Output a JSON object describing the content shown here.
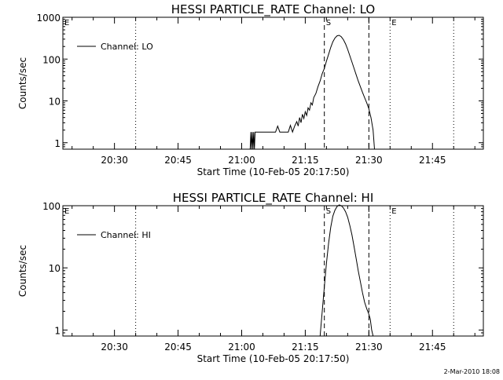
{
  "footer_text": "2-Mar-2010 18:08",
  "chart_data": [
    {
      "type": "line",
      "title": "HESSI PARTICLE_RATE Channel: LO",
      "xlabel": "Start Time (10-Feb-05 20:17:50)",
      "ylabel": "Counts/sec",
      "yscale": "log",
      "xlim": [
        "20:17:50",
        "21:57:00"
      ],
      "ylim": [
        0.7,
        1000
      ],
      "x_tick_labels": [
        "20:30",
        "20:45",
        "21:00",
        "21:15",
        "21:30",
        "21:45"
      ],
      "y_tick_labels": [
        "1",
        "10",
        "100",
        "1000"
      ],
      "legend": {
        "position": "top-left",
        "entries": [
          "Channel: LO"
        ]
      },
      "markers": [
        {
          "label": "E",
          "x": "20:17:50",
          "style": "dotted"
        },
        {
          "label": "",
          "x": "20:35:00",
          "style": "dotted"
        },
        {
          "label": "S",
          "x": "21:19:30",
          "style": "dashed"
        },
        {
          "label": "",
          "x": "21:30:00",
          "style": "dashed"
        },
        {
          "label": "E",
          "x": "21:35:00",
          "style": "dotted"
        },
        {
          "label": "",
          "x": "21:50:00",
          "style": "dotted"
        }
      ],
      "series": [
        {
          "name": "Channel: LO",
          "points": [
            [
              "21:02:00",
              0.7
            ],
            [
              "21:02:10",
              1.8
            ],
            [
              "21:02:20",
              0.7
            ],
            [
              "21:02:30",
              1.8
            ],
            [
              "21:02:40",
              0.7
            ],
            [
              "21:02:50",
              1.8
            ],
            [
              "21:03:00",
              0.7
            ],
            [
              "21:03:10",
              1.8
            ],
            [
              "21:04:00",
              1.8
            ],
            [
              "21:05:00",
              1.8
            ],
            [
              "21:06:00",
              1.8
            ],
            [
              "21:07:00",
              1.8
            ],
            [
              "21:08:00",
              1.8
            ],
            [
              "21:08:30",
              2.5
            ],
            [
              "21:09:00",
              1.8
            ],
            [
              "21:10:00",
              1.8
            ],
            [
              "21:11:00",
              1.8
            ],
            [
              "21:11:30",
              2.6
            ],
            [
              "21:12:00",
              1.8
            ],
            [
              "21:12:30",
              2.5
            ],
            [
              "21:13:00",
              3.2
            ],
            [
              "21:13:20",
              2.5
            ],
            [
              "21:13:40",
              4.0
            ],
            [
              "21:14:00",
              3.0
            ],
            [
              "21:14:20",
              4.8
            ],
            [
              "21:14:40",
              3.8
            ],
            [
              "21:15:00",
              5.5
            ],
            [
              "21:15:20",
              4.5
            ],
            [
              "21:15:40",
              6.8
            ],
            [
              "21:16:00",
              6.0
            ],
            [
              "21:16:20",
              9.0
            ],
            [
              "21:16:40",
              8.0
            ],
            [
              "21:17:00",
              12
            ],
            [
              "21:17:30",
              15
            ],
            [
              "21:18:00",
              22
            ],
            [
              "21:18:30",
              30
            ],
            [
              "21:19:00",
              45
            ],
            [
              "21:19:30",
              60
            ],
            [
              "21:20:00",
              90
            ],
            [
              "21:20:30",
              130
            ],
            [
              "21:21:00",
              190
            ],
            [
              "21:21:30",
              260
            ],
            [
              "21:22:00",
              320
            ],
            [
              "21:22:30",
              360
            ],
            [
              "21:23:00",
              370
            ],
            [
              "21:23:30",
              340
            ],
            [
              "21:24:00",
              290
            ],
            [
              "21:24:30",
              230
            ],
            [
              "21:25:00",
              170
            ],
            [
              "21:25:30",
              120
            ],
            [
              "21:26:00",
              85
            ],
            [
              "21:26:30",
              60
            ],
            [
              "21:27:00",
              42
            ],
            [
              "21:27:30",
              30
            ],
            [
              "21:28:00",
              22
            ],
            [
              "21:28:30",
              16
            ],
            [
              "21:29:00",
              12
            ],
            [
              "21:29:30",
              9
            ],
            [
              "21:30:00",
              6.5
            ],
            [
              "21:30:30",
              4
            ],
            [
              "21:31:00",
              2
            ],
            [
              "21:31:20",
              0.7
            ]
          ]
        }
      ]
    },
    {
      "type": "line",
      "title": "HESSI PARTICLE_RATE Channel: HI",
      "xlabel": "Start Time (10-Feb-05 20:17:50)",
      "ylabel": "Counts/sec",
      "yscale": "log",
      "xlim": [
        "20:17:50",
        "21:57:00"
      ],
      "ylim": [
        0.8,
        100
      ],
      "x_tick_labels": [
        "20:30",
        "20:45",
        "21:00",
        "21:15",
        "21:30",
        "21:45"
      ],
      "y_tick_labels": [
        "1",
        "10",
        "100"
      ],
      "legend": {
        "position": "top-left",
        "entries": [
          "Channel: HI"
        ]
      },
      "markers": [
        {
          "label": "E",
          "x": "20:17:50",
          "style": "dotted"
        },
        {
          "label": "",
          "x": "20:35:00",
          "style": "dotted"
        },
        {
          "label": "S",
          "x": "21:19:30",
          "style": "dashed"
        },
        {
          "label": "",
          "x": "21:30:00",
          "style": "dashed"
        },
        {
          "label": "E",
          "x": "21:35:00",
          "style": "dotted"
        },
        {
          "label": "",
          "x": "21:50:00",
          "style": "dotted"
        }
      ],
      "series": [
        {
          "name": "Channel: HI",
          "points": [
            [
              "21:18:30",
              0.8
            ],
            [
              "21:19:00",
              2
            ],
            [
              "21:19:30",
              5
            ],
            [
              "21:20:00",
              12
            ],
            [
              "21:20:30",
              25
            ],
            [
              "21:21:00",
              45
            ],
            [
              "21:21:30",
              68
            ],
            [
              "21:22:00",
              85
            ],
            [
              "21:22:30",
              97
            ],
            [
              "21:23:00",
              103
            ],
            [
              "21:23:30",
              100
            ],
            [
              "21:24:00",
              92
            ],
            [
              "21:24:30",
              80
            ],
            [
              "21:25:00",
              65
            ],
            [
              "21:25:30",
              48
            ],
            [
              "21:26:00",
              34
            ],
            [
              "21:26:30",
              22
            ],
            [
              "21:27:00",
              14
            ],
            [
              "21:27:30",
              9
            ],
            [
              "21:28:00",
              6
            ],
            [
              "21:28:30",
              4
            ],
            [
              "21:29:00",
              2.8
            ],
            [
              "21:29:30",
              2.2
            ],
            [
              "21:30:00",
              1.8
            ],
            [
              "21:30:20",
              1.5
            ],
            [
              "21:30:40",
              1
            ],
            [
              "21:31:00",
              0.8
            ]
          ]
        }
      ]
    }
  ]
}
